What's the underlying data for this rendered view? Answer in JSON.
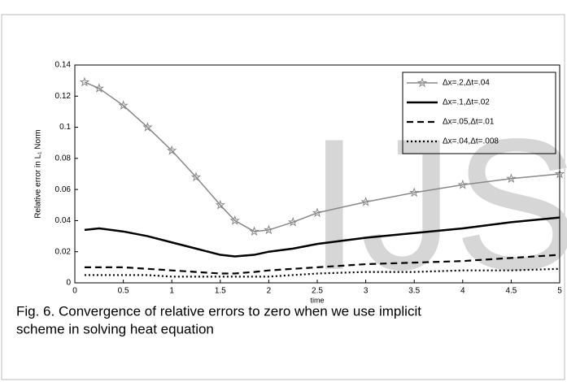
{
  "chart_data": {
    "type": "line",
    "xlabel": "time",
    "ylabel": "Relative error in L₁ Norm",
    "x": [
      0.1,
      0.25,
      0.5,
      0.75,
      1,
      1.25,
      1.5,
      1.65,
      1.85,
      2,
      2.25,
      2.5,
      3,
      3.5,
      4,
      4.5,
      5
    ],
    "series": [
      {
        "name": "Δx=.2,Δt=.04",
        "color": "#888888",
        "style": "star",
        "values": [
          0.129,
          0.125,
          0.114,
          0.1,
          0.085,
          0.068,
          0.05,
          0.04,
          0.033,
          0.034,
          0.039,
          0.045,
          0.052,
          0.058,
          0.063,
          0.067,
          0.07
        ]
      },
      {
        "name": "Δx=.1,Δt=.02",
        "color": "#000000",
        "style": "solid",
        "values": [
          0.034,
          0.035,
          0.033,
          0.03,
          0.026,
          0.022,
          0.018,
          0.017,
          0.018,
          0.02,
          0.022,
          0.025,
          0.029,
          0.032,
          0.035,
          0.039,
          0.042
        ]
      },
      {
        "name": "Δx=.05,Δt=.01",
        "color": "#000000",
        "style": "dashed",
        "values": [
          0.01,
          0.01,
          0.01,
          0.009,
          0.008,
          0.007,
          0.006,
          0.006,
          0.007,
          0.008,
          0.009,
          0.01,
          0.012,
          0.013,
          0.014,
          0.016,
          0.018
        ]
      },
      {
        "name": "Δx=.04,Δt=.008",
        "color": "#000000",
        "style": "dotted",
        "values": [
          0.005,
          0.005,
          0.005,
          0.005,
          0.004,
          0.004,
          0.004,
          0.004,
          0.004,
          0.004,
          0.005,
          0.006,
          0.007,
          0.007,
          0.008,
          0.008,
          0.009
        ]
      }
    ],
    "xlim": [
      0,
      5
    ],
    "xticks": [
      0,
      0.5,
      1,
      1.5,
      2,
      2.5,
      3,
      3.5,
      4,
      4.5,
      5
    ],
    "ylim": [
      0,
      0.14
    ],
    "yticks": [
      0,
      0.02,
      0.04,
      0.06,
      0.08,
      0.1,
      0.12,
      0.14
    ],
    "legend": "upper right",
    "watermark": "IJS",
    "caption": [
      "Fig. 6. Convergence of relative errors to zero when we use implicit",
      "scheme in solving heat equation"
    ]
  }
}
